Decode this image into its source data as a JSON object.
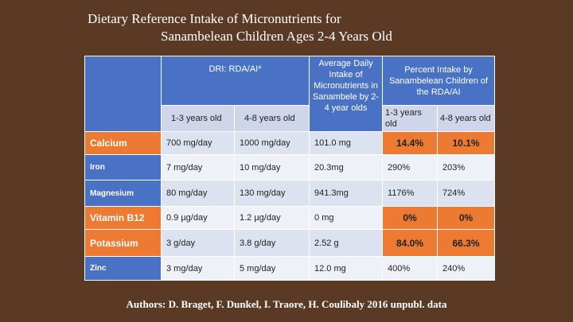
{
  "title": {
    "line1": "Dietary Reference Intake of Micronutrients for",
    "line2": "Sanambelean Children Ages 2-4 Years Old"
  },
  "table": {
    "header": {
      "dri": "DRI: RDA/AI*",
      "avg": "Average Daily Intake of Micronutrients in Sanambele by 2-4 year olds",
      "pct": "Percent Intake by Sanambelean Children of the RDA/AI",
      "dri_age1": "1-3 years old",
      "dri_age2": "4-8 years old",
      "pct_age1": "1-3 years old",
      "pct_age2": "4-8 years old"
    },
    "rows": [
      {
        "name": "Calcium",
        "dri1": "700 mg/day",
        "dri2": "1000 mg/day",
        "avg": "101.0 mg",
        "pct1": "14.4%",
        "pct2": "10.1%"
      },
      {
        "name": "Iron",
        "dri1": "7 mg/day",
        "dri2": "10 mg/day",
        "avg": "20.3mg",
        "pct1": "290%",
        "pct2": "203%"
      },
      {
        "name": "Magnesium",
        "dri1": "80 mg/day",
        "dri2": "130 mg/day",
        "avg": "941.3mg",
        "pct1": "1176%",
        "pct2": "724%"
      },
      {
        "name": "Vitamin B12",
        "dri1": "0.9 µg/day",
        "dri2": "1.2 µg/day",
        "avg": "0 mg",
        "pct1": "0%",
        "pct2": "0%"
      },
      {
        "name": "Potassium",
        "dri1": "3 g/day",
        "dri2": "3.8 g/day",
        "avg": "2.52 g",
        "pct1": "84.0%",
        "pct2": "66.3%"
      },
      {
        "name": "Zinc",
        "dri1": "3 mg/day",
        "dri2": "5 mg/day",
        "avg": "12.0 mg",
        "pct1": "400%",
        "pct2": "240%"
      }
    ]
  },
  "authors": "Authors: D. Braget, F. Dunkel, I. Traore, H. Coulibaly 2016 unpubl. data",
  "colors": {
    "background": "#5b3a25",
    "header_blue": "#4a72c4",
    "highlight_orange": "#ec7a33"
  }
}
